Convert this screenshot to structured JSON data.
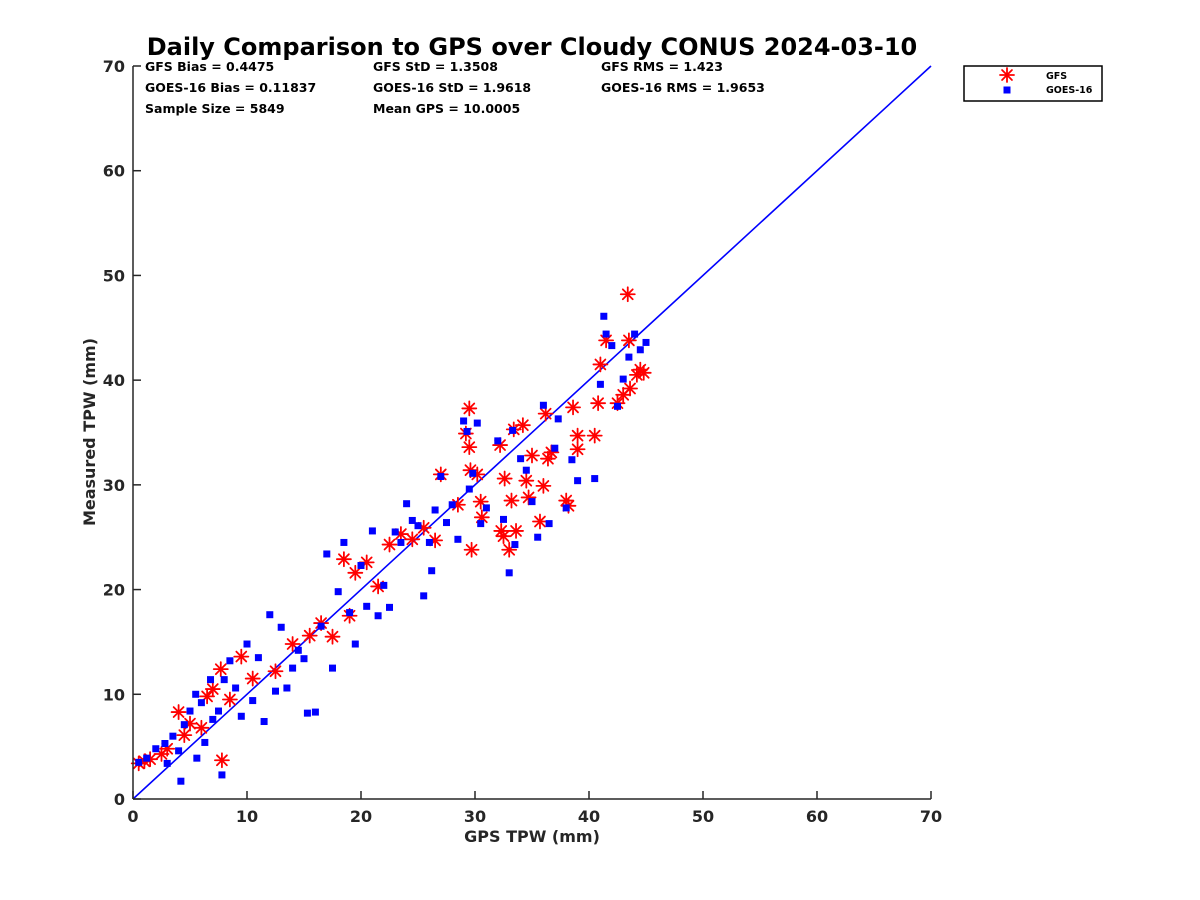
{
  "chart_data": {
    "type": "scatter",
    "title": "Daily Comparison to GPS over Cloudy CONUS 2024-03-10",
    "xlabel": "GPS TPW (mm)",
    "ylabel": "Measured TPW (mm)",
    "xlim": [
      0,
      70
    ],
    "ylim": [
      0,
      70
    ],
    "xticks": [
      "0",
      "10",
      "20",
      "30",
      "40",
      "50",
      "60",
      "70"
    ],
    "yticks": [
      "0",
      "10",
      "20",
      "30",
      "40",
      "50",
      "60",
      "70"
    ],
    "grid": false,
    "legend_position": "outside-top-right",
    "stats": [
      [
        "GFS Bias = 0.4475",
        "GFS StD = 1.3508",
        "GFS RMS = 1.423"
      ],
      [
        "GOES-16 Bias = 0.11837",
        "GOES-16 StD = 1.9618",
        "GOES-16 RMS = 1.9653"
      ],
      [
        "Sample Size = 5849",
        "Mean GPS = 10.0005",
        ""
      ]
    ],
    "reference_line": {
      "x": [
        0,
        70
      ],
      "y": [
        0,
        70
      ],
      "color": "#0000ff"
    },
    "series": [
      {
        "name": "GFS",
        "marker": "asterisk",
        "color": "#ff0000",
        "points": [
          [
            0.5,
            3.4
          ],
          [
            1,
            3.6
          ],
          [
            1.5,
            3.8
          ],
          [
            2.5,
            4.3
          ],
          [
            3,
            4.8
          ],
          [
            4,
            8.3
          ],
          [
            4.5,
            6.1
          ],
          [
            5,
            7.2
          ],
          [
            6,
            6.8
          ],
          [
            6.5,
            9.8
          ],
          [
            7,
            10.5
          ],
          [
            7.7,
            12.4
          ],
          [
            7.8,
            3.7
          ],
          [
            8.5,
            9.5
          ],
          [
            9.5,
            13.6
          ],
          [
            10.5,
            11.5
          ],
          [
            12.5,
            12.2
          ],
          [
            14,
            14.8
          ],
          [
            15.5,
            15.6
          ],
          [
            16.5,
            16.8
          ],
          [
            17.5,
            15.5
          ],
          [
            18.5,
            22.9
          ],
          [
            19.5,
            21.6
          ],
          [
            19,
            17.5
          ],
          [
            20.5,
            22.6
          ],
          [
            21.5,
            20.3
          ],
          [
            22.5,
            24.3
          ],
          [
            23.5,
            25.3
          ],
          [
            24.5,
            24.8
          ],
          [
            25.5,
            25.9
          ],
          [
            26.5,
            24.7
          ],
          [
            27,
            31
          ],
          [
            28.5,
            28.1
          ],
          [
            29.2,
            34.9
          ],
          [
            29.5,
            37.3
          ],
          [
            29.5,
            33.6
          ],
          [
            29.6,
            31.4
          ],
          [
            29.7,
            23.8
          ],
          [
            30.2,
            31
          ],
          [
            30.5,
            28.4
          ],
          [
            30.6,
            26.9
          ],
          [
            32.2,
            33.8
          ],
          [
            32.3,
            25.6
          ],
          [
            32.5,
            25.1
          ],
          [
            32.6,
            30.6
          ],
          [
            33,
            23.8
          ],
          [
            33.2,
            28.5
          ],
          [
            33.4,
            35.3
          ],
          [
            33.6,
            25.6
          ],
          [
            34.2,
            35.7
          ],
          [
            34.5,
            30.4
          ],
          [
            34.7,
            28.8
          ],
          [
            35,
            32.8
          ],
          [
            35.7,
            26.5
          ],
          [
            36,
            29.9
          ],
          [
            36.2,
            36.8
          ],
          [
            36.4,
            32.5
          ],
          [
            36.7,
            33.1
          ],
          [
            38,
            28.5
          ],
          [
            38.2,
            28
          ],
          [
            38.6,
            37.4
          ],
          [
            39,
            34.7
          ],
          [
            39,
            33.4
          ],
          [
            40.5,
            34.7
          ],
          [
            40.8,
            37.8
          ],
          [
            41,
            41.5
          ],
          [
            41.5,
            43.8
          ],
          [
            42.5,
            37.8
          ],
          [
            43,
            38.6
          ],
          [
            43.4,
            48.2
          ],
          [
            43.6,
            39.2
          ],
          [
            43.5,
            43.8
          ],
          [
            44.5,
            41
          ],
          [
            44.8,
            40.7
          ],
          [
            44.2,
            40.5
          ]
        ]
      },
      {
        "name": "GOES-16",
        "marker": "square",
        "color": "#0000ff",
        "points": [
          [
            0.5,
            3.5
          ],
          [
            1.2,
            3.9
          ],
          [
            2,
            4.8
          ],
          [
            2.8,
            5.3
          ],
          [
            3,
            3.4
          ],
          [
            3.5,
            6
          ],
          [
            4,
            4.6
          ],
          [
            4.2,
            1.7
          ],
          [
            4.5,
            7.1
          ],
          [
            5,
            8.4
          ],
          [
            5.5,
            10
          ],
          [
            5.6,
            3.9
          ],
          [
            6,
            9.2
          ],
          [
            6.3,
            5.4
          ],
          [
            6.8,
            11.4
          ],
          [
            7,
            7.6
          ],
          [
            7.5,
            8.4
          ],
          [
            7.8,
            2.3
          ],
          [
            8,
            11.4
          ],
          [
            8.5,
            13.2
          ],
          [
            9,
            10.6
          ],
          [
            9.5,
            7.9
          ],
          [
            10,
            14.8
          ],
          [
            10.5,
            9.4
          ],
          [
            11,
            13.5
          ],
          [
            11.5,
            7.4
          ],
          [
            12,
            17.6
          ],
          [
            12.5,
            10.3
          ],
          [
            13,
            16.4
          ],
          [
            13.5,
            10.6
          ],
          [
            14,
            12.5
          ],
          [
            14.5,
            14.2
          ],
          [
            15,
            13.4
          ],
          [
            15.3,
            8.2
          ],
          [
            16,
            8.3
          ],
          [
            16.5,
            16.5
          ],
          [
            17,
            23.4
          ],
          [
            17.5,
            12.5
          ],
          [
            18,
            19.8
          ],
          [
            18.5,
            24.5
          ],
          [
            19,
            17.8
          ],
          [
            19.5,
            14.8
          ],
          [
            20,
            22.3
          ],
          [
            20.5,
            18.4
          ],
          [
            21,
            25.6
          ],
          [
            21.5,
            17.5
          ],
          [
            22,
            20.4
          ],
          [
            22.5,
            18.3
          ],
          [
            23,
            25.5
          ],
          [
            23.5,
            24.5
          ],
          [
            24,
            28.2
          ],
          [
            24.5,
            26.6
          ],
          [
            25,
            26.1
          ],
          [
            25.5,
            19.4
          ],
          [
            26,
            24.5
          ],
          [
            26.2,
            21.8
          ],
          [
            26.5,
            27.6
          ],
          [
            27,
            30.8
          ],
          [
            27.5,
            26.4
          ],
          [
            28,
            28.1
          ],
          [
            28.5,
            24.8
          ],
          [
            29,
            36.1
          ],
          [
            29.3,
            35.1
          ],
          [
            29.5,
            29.6
          ],
          [
            29.8,
            31.1
          ],
          [
            30.2,
            35.9
          ],
          [
            30.5,
            26.3
          ],
          [
            31,
            27.8
          ],
          [
            32,
            34.2
          ],
          [
            32.5,
            26.7
          ],
          [
            33,
            21.6
          ],
          [
            33.3,
            35.2
          ],
          [
            33.5,
            24.3
          ],
          [
            34,
            32.5
          ],
          [
            34.5,
            31.4
          ],
          [
            35,
            28.4
          ],
          [
            35.5,
            25
          ],
          [
            36,
            37.6
          ],
          [
            36.5,
            26.3
          ],
          [
            37,
            33.5
          ],
          [
            37.3,
            36.3
          ],
          [
            38,
            27.8
          ],
          [
            38.5,
            32.4
          ],
          [
            39,
            30.4
          ],
          [
            40.5,
            30.6
          ],
          [
            41,
            39.6
          ],
          [
            41.3,
            46.1
          ],
          [
            41.5,
            44.4
          ],
          [
            42,
            43.3
          ],
          [
            42.5,
            37.5
          ],
          [
            43,
            40.1
          ],
          [
            43.5,
            42.2
          ],
          [
            44,
            44.4
          ],
          [
            44.5,
            42.9
          ],
          [
            45,
            43.6
          ]
        ]
      }
    ]
  }
}
